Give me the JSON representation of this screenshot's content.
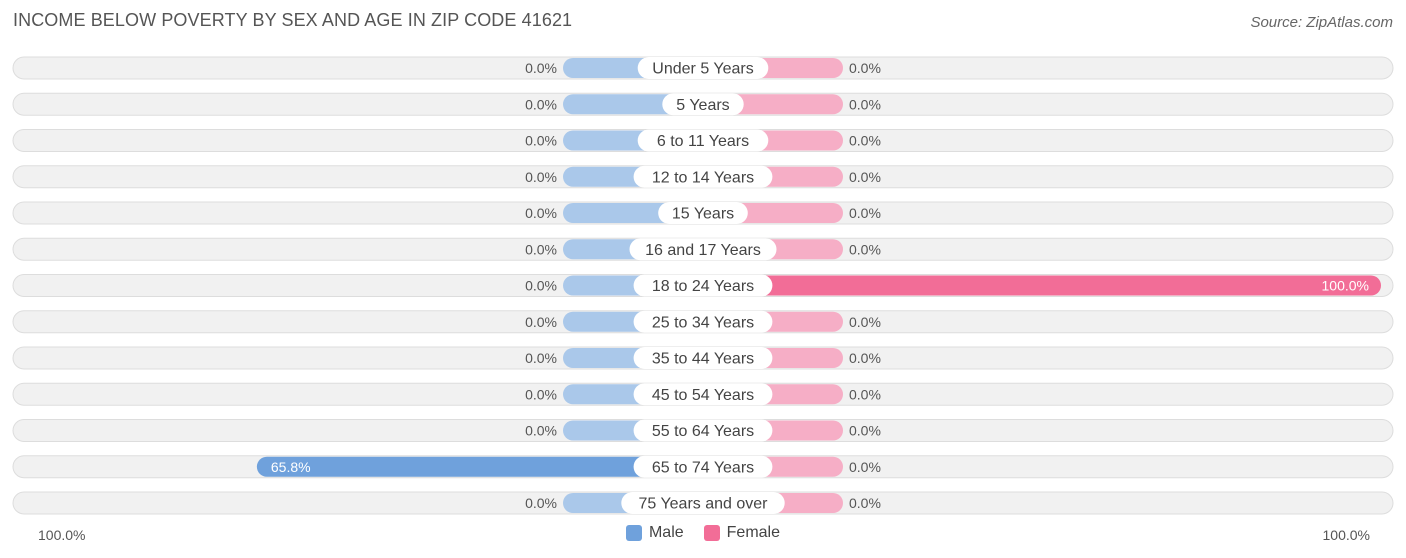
{
  "chart_data": {
    "type": "bar",
    "orientation": "horizontal-diverging",
    "title": "INCOME BELOW POVERTY BY SEX AND AGE IN ZIP CODE 41621",
    "source": "Source: ZipAtlas.com",
    "categories": [
      "Under 5 Years",
      "5 Years",
      "6 to 11 Years",
      "12 to 14 Years",
      "15 Years",
      "16 and 17 Years",
      "18 to 24 Years",
      "25 to 34 Years",
      "35 to 44 Years",
      "45 to 54 Years",
      "55 to 64 Years",
      "65 to 74 Years",
      "75 Years and over"
    ],
    "series": [
      {
        "name": "Male",
        "values": [
          0,
          0,
          0,
          0,
          0,
          0,
          0,
          0,
          0,
          0,
          0,
          65.8,
          0
        ],
        "labels": [
          "0.0%",
          "0.0%",
          "0.0%",
          "0.0%",
          "0.0%",
          "0.0%",
          "0.0%",
          "0.0%",
          "0.0%",
          "0.0%",
          "0.0%",
          "65.8%",
          "0.0%"
        ]
      },
      {
        "name": "Female",
        "values": [
          0,
          0,
          0,
          0,
          0,
          0,
          100,
          0,
          0,
          0,
          0,
          0,
          0
        ],
        "labels": [
          "0.0%",
          "0.0%",
          "0.0%",
          "0.0%",
          "0.0%",
          "0.0%",
          "100.0%",
          "0.0%",
          "0.0%",
          "0.0%",
          "0.0%",
          "0.0%",
          "0.0%"
        ]
      }
    ],
    "xlim": [
      -100,
      100
    ],
    "axis_left_label": "100.0%",
    "axis_right_label": "100.0%",
    "legend_position": "bottom-center"
  },
  "colors": {
    "male": "#6fa1dc",
    "male_light": "#aac8ea",
    "female": "#f26d97",
    "female_light": "#f6aec6",
    "row_bg": "#f1f1f1",
    "row_border": "#dddddd",
    "text": "#555555"
  }
}
